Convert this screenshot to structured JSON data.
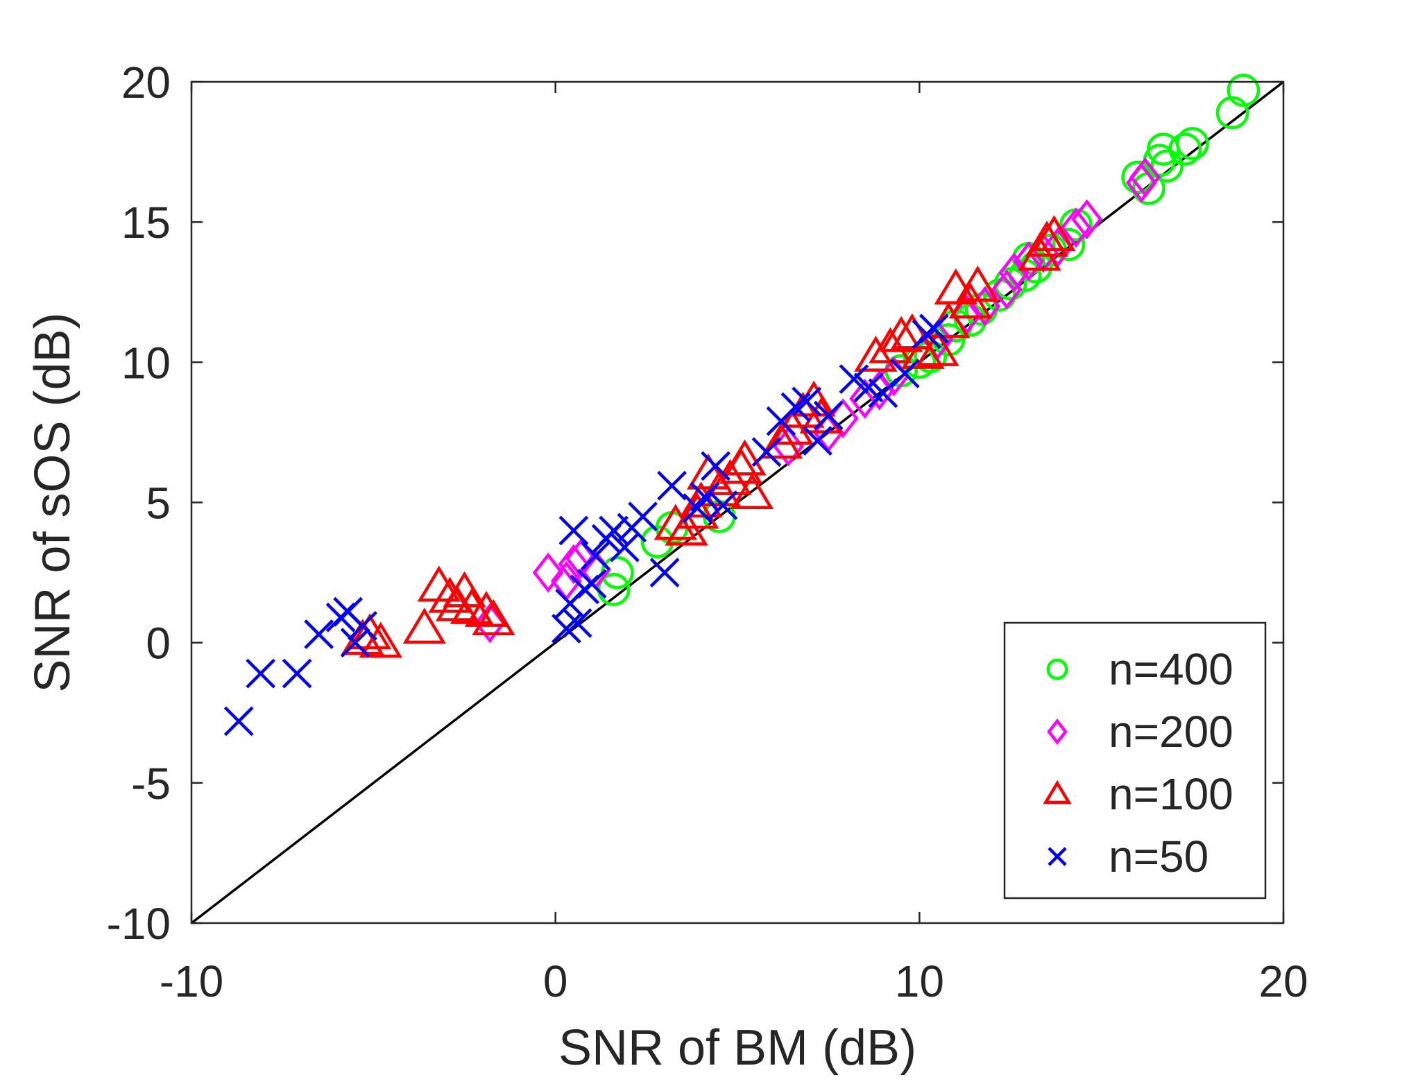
{
  "chart_data": {
    "type": "scatter",
    "title": "",
    "xlabel": "SNR of BM (dB)",
    "ylabel": "SNR of sOS (dB)",
    "xlim": [
      -10,
      20
    ],
    "ylim": [
      -10,
      20
    ],
    "xticks": [
      -10,
      0,
      10,
      20
    ],
    "yticks": [
      -10,
      -5,
      0,
      5,
      10,
      15,
      20
    ],
    "xtick_labels": [
      "-10",
      "0",
      "10",
      "20"
    ],
    "ytick_labels": [
      "-10",
      "-5",
      "0",
      "5",
      "10",
      "15",
      "20"
    ],
    "grid": false,
    "reference_line": {
      "name": "y = x",
      "x": [
        -10,
        20
      ],
      "y": [
        -10,
        20
      ],
      "color": "#000000"
    },
    "legend": {
      "placement": "bottom-right"
    },
    "series": [
      {
        "name": "n=400",
        "label": "n=400",
        "marker": "circle",
        "color": "#00ff00",
        "points": [
          [
            1.6,
            1.9
          ],
          [
            1.7,
            2.5
          ],
          [
            2.8,
            3.6
          ],
          [
            3.2,
            4.1
          ],
          [
            4.5,
            4.5
          ],
          [
            9.5,
            9.7
          ],
          [
            10.0,
            10.0
          ],
          [
            10.3,
            10.2
          ],
          [
            10.8,
            10.8
          ],
          [
            11.0,
            11.3
          ],
          [
            11.4,
            11.5
          ],
          [
            11.7,
            11.9
          ],
          [
            12.2,
            12.4
          ],
          [
            12.5,
            12.8
          ],
          [
            12.9,
            13.1
          ],
          [
            13.2,
            13.4
          ],
          [
            13.0,
            13.7
          ],
          [
            13.6,
            14.0
          ],
          [
            14.1,
            14.2
          ],
          [
            14.3,
            14.9
          ],
          [
            16.0,
            16.6
          ],
          [
            16.3,
            16.2
          ],
          [
            16.6,
            17.2
          ],
          [
            16.8,
            17.0
          ],
          [
            16.7,
            17.6
          ],
          [
            17.3,
            17.6
          ],
          [
            17.5,
            17.8
          ],
          [
            18.6,
            18.9
          ],
          [
            18.9,
            19.7
          ]
        ]
      },
      {
        "name": "n=200",
        "label": "n=200",
        "marker": "diamond",
        "color": "#ff00ff",
        "points": [
          [
            -1.8,
            0.7
          ],
          [
            -0.2,
            2.5
          ],
          [
            0.3,
            2.2
          ],
          [
            0.5,
            2.8
          ],
          [
            0.7,
            3.0
          ],
          [
            1.1,
            2.6
          ],
          [
            6.4,
            7.0
          ],
          [
            7.5,
            7.5
          ],
          [
            7.9,
            8.0
          ],
          [
            8.5,
            8.7
          ],
          [
            8.9,
            9.0
          ],
          [
            9.3,
            9.5
          ],
          [
            10.5,
            10.8
          ],
          [
            11.3,
            11.7
          ],
          [
            11.8,
            12.0
          ],
          [
            12.4,
            12.6
          ],
          [
            12.6,
            13.2
          ],
          [
            13.0,
            13.6
          ],
          [
            13.4,
            13.9
          ],
          [
            13.8,
            14.1
          ],
          [
            14.3,
            14.8
          ],
          [
            14.6,
            15.1
          ],
          [
            16.1,
            16.4
          ],
          [
            16.2,
            16.6
          ]
        ]
      },
      {
        "name": "n=100",
        "label": "n=100",
        "marker": "triangle",
        "color": "#ff0000",
        "points": [
          [
            -5.3,
            0.1
          ],
          [
            -5.1,
            0.3
          ],
          [
            -4.8,
            0.0
          ],
          [
            -3.6,
            0.5
          ],
          [
            -3.2,
            2.0
          ],
          [
            -2.9,
            1.6
          ],
          [
            -2.7,
            1.3
          ],
          [
            -2.5,
            1.8
          ],
          [
            -2.3,
            1.2
          ],
          [
            -1.9,
            1.1
          ],
          [
            -1.7,
            0.8
          ],
          [
            3.3,
            4.2
          ],
          [
            3.6,
            4.0
          ],
          [
            3.9,
            4.6
          ],
          [
            4.0,
            5.0
          ],
          [
            4.2,
            6.0
          ],
          [
            4.5,
            5.4
          ],
          [
            4.8,
            5.8
          ],
          [
            5.1,
            6.2
          ],
          [
            5.4,
            5.3
          ],
          [
            5.2,
            6.5
          ],
          [
            6.2,
            7.1
          ],
          [
            6.5,
            7.6
          ],
          [
            6.8,
            8.2
          ],
          [
            7.1,
            8.6
          ],
          [
            7.3,
            8.0
          ],
          [
            8.8,
            10.2
          ],
          [
            9.2,
            10.5
          ],
          [
            9.5,
            10.9
          ],
          [
            9.8,
            11.0
          ],
          [
            10.1,
            10.3
          ],
          [
            10.5,
            10.4
          ],
          [
            10.8,
            11.4
          ],
          [
            11.0,
            12.6
          ],
          [
            11.4,
            12.1
          ],
          [
            11.6,
            12.7
          ],
          [
            13.3,
            13.8
          ],
          [
            13.5,
            14.3
          ],
          [
            13.7,
            14.5
          ]
        ]
      },
      {
        "name": "n=50",
        "label": "n=50",
        "marker": "x",
        "color": "#0000ff",
        "points": [
          [
            -8.7,
            -2.8
          ],
          [
            -8.1,
            -1.1
          ],
          [
            -7.1,
            -1.1
          ],
          [
            -6.5,
            0.3
          ],
          [
            -5.9,
            0.9
          ],
          [
            -5.7,
            1.1
          ],
          [
            -5.5,
            0.0
          ],
          [
            -5.3,
            0.6
          ],
          [
            0.3,
            0.5
          ],
          [
            0.6,
            0.7
          ],
          [
            0.4,
            1.4
          ],
          [
            0.8,
            1.9
          ],
          [
            1.0,
            2.1
          ],
          [
            0.5,
            4.0
          ],
          [
            1.1,
            3.1
          ],
          [
            1.4,
            3.7
          ],
          [
            1.6,
            4.0
          ],
          [
            1.9,
            3.4
          ],
          [
            2.1,
            4.1
          ],
          [
            2.4,
            4.5
          ],
          [
            3.0,
            2.5
          ],
          [
            3.2,
            5.6
          ],
          [
            3.9,
            4.8
          ],
          [
            4.1,
            5.2
          ],
          [
            4.4,
            6.3
          ],
          [
            4.6,
            4.9
          ],
          [
            5.8,
            6.8
          ],
          [
            6.2,
            7.9
          ],
          [
            6.6,
            8.4
          ],
          [
            6.9,
            8.6
          ],
          [
            7.2,
            7.2
          ],
          [
            7.5,
            8.1
          ],
          [
            8.2,
            9.4
          ],
          [
            8.6,
            9.1
          ],
          [
            9.0,
            8.9
          ],
          [
            9.6,
            9.6
          ],
          [
            10.2,
            11.0
          ],
          [
            10.4,
            11.2
          ]
        ]
      }
    ]
  }
}
